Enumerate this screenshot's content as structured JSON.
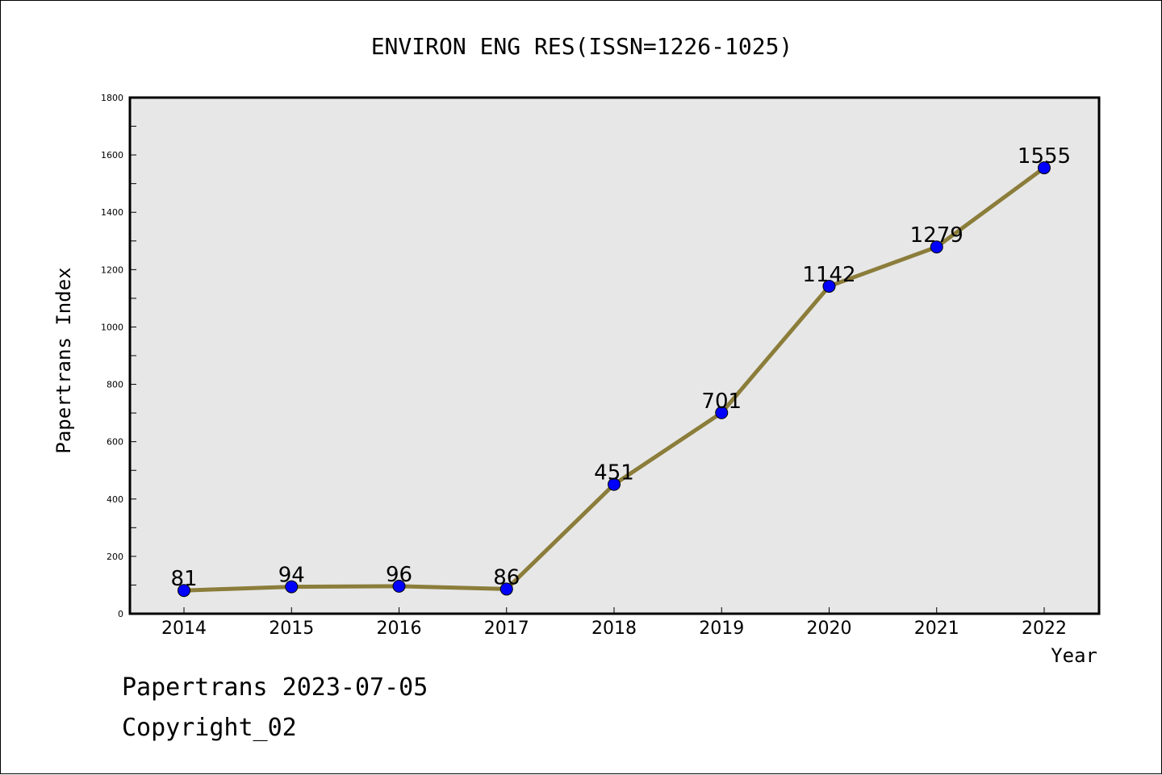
{
  "chart_data": {
    "type": "line",
    "title": "ENVIRON ENG RES(ISSN=1226-1025)",
    "xlabel": "Year",
    "ylabel": "Papertrans Index",
    "categories": [
      "2014",
      "2015",
      "2016",
      "2017",
      "2018",
      "2019",
      "2020",
      "2021",
      "2022"
    ],
    "series": [
      {
        "values": [
          81,
          94,
          96,
          86,
          451,
          701,
          1142,
          1279,
          1555
        ],
        "labels": [
          "81",
          "94",
          "96",
          "86",
          "451",
          "701",
          "1142",
          "1279",
          "1555"
        ]
      }
    ],
    "ylim": [
      0,
      1800
    ],
    "y_ticks": [
      "0",
      "200",
      "400",
      "600",
      "800",
      "1000",
      "1200",
      "1400",
      "1600",
      "1800"
    ],
    "grid": false,
    "legend": "none",
    "line_color": "#8b7d3a",
    "marker_color": "#0000ff",
    "plot_background": "#e7e7e7"
  },
  "footer": {
    "line1": "Papertrans 2023-07-05",
    "line2": "Copyright_02"
  }
}
